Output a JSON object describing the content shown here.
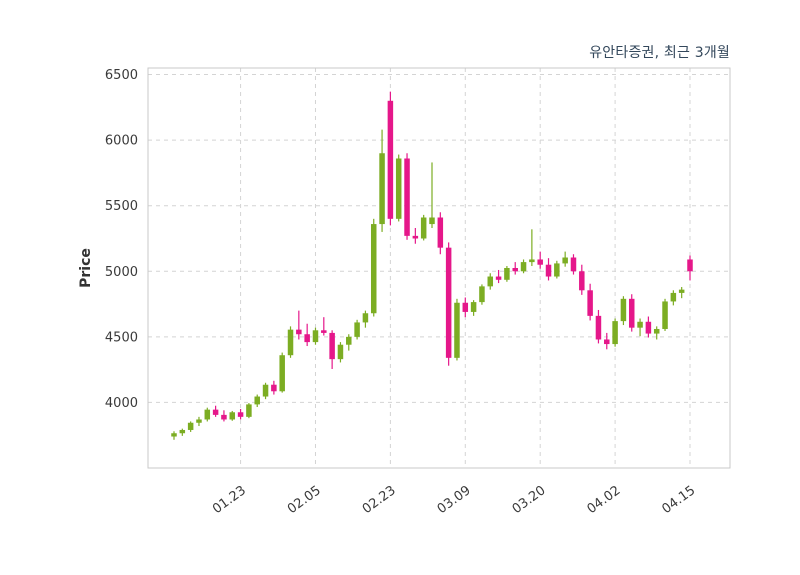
{
  "colors": {
    "background": "#ffffff",
    "grid": "#d4d4d4",
    "border": "#c9c9c9",
    "tick_text": "#3a3a3a",
    "title_text": "#33475b"
  },
  "chart_data": {
    "type": "candlestick",
    "title": "유안타증권, 최근 3개월",
    "ylabel": "Price",
    "xlabel": "",
    "ylim": [
      3500,
      6550
    ],
    "yticks": [
      4000,
      4500,
      5000,
      5500,
      6000,
      6500
    ],
    "xtick_labels": [
      "01.23",
      "02.05",
      "02.23",
      "03.09",
      "03.20",
      "04.02",
      "04.15"
    ],
    "xtick_indices": [
      8,
      17,
      26,
      35,
      44,
      53,
      62
    ],
    "grid": true,
    "legend": "none",
    "up_color": "#7CAD23",
    "down_color": "#E5178A",
    "series_format": [
      "open",
      "high",
      "low",
      "close"
    ],
    "candles": [
      [
        3740,
        3780,
        3715,
        3765
      ],
      [
        3765,
        3800,
        3745,
        3790
      ],
      [
        3790,
        3855,
        3775,
        3845
      ],
      [
        3845,
        3890,
        3820,
        3870
      ],
      [
        3870,
        3960,
        3855,
        3945
      ],
      [
        3945,
        3975,
        3890,
        3905
      ],
      [
        3905,
        3940,
        3855,
        3870
      ],
      [
        3870,
        3935,
        3860,
        3925
      ],
      [
        3925,
        3950,
        3870,
        3890
      ],
      [
        3890,
        3995,
        3880,
        3985
      ],
      [
        3985,
        4060,
        3965,
        4045
      ],
      [
        4045,
        4150,
        4025,
        4135
      ],
      [
        4135,
        4165,
        4060,
        4085
      ],
      [
        4085,
        4380,
        4075,
        4360
      ],
      [
        4360,
        4580,
        4340,
        4555
      ],
      [
        4555,
        4700,
        4480,
        4520
      ],
      [
        4520,
        4600,
        4430,
        4460
      ],
      [
        4460,
        4570,
        4440,
        4550
      ],
      [
        4550,
        4650,
        4510,
        4530
      ],
      [
        4530,
        4550,
        4255,
        4330
      ],
      [
        4330,
        4460,
        4305,
        4440
      ],
      [
        4440,
        4520,
        4395,
        4500
      ],
      [
        4500,
        4630,
        4480,
        4610
      ],
      [
        4610,
        4700,
        4570,
        4680
      ],
      [
        4680,
        5400,
        4655,
        5360
      ],
      [
        5360,
        6080,
        5300,
        5900
      ],
      [
        6300,
        6370,
        5350,
        5400
      ],
      [
        5400,
        5890,
        5380,
        5860
      ],
      [
        5860,
        5900,
        5240,
        5270
      ],
      [
        5270,
        5330,
        5210,
        5250
      ],
      [
        5250,
        5430,
        5235,
        5410
      ],
      [
        5360,
        5830,
        5330,
        5410
      ],
      [
        5410,
        5450,
        5130,
        5180
      ],
      [
        5180,
        5220,
        4280,
        4340
      ],
      [
        4340,
        4790,
        4320,
        4760
      ],
      [
        4760,
        4800,
        4650,
        4690
      ],
      [
        4690,
        4780,
        4660,
        4765
      ],
      [
        4765,
        4900,
        4745,
        4885
      ],
      [
        4885,
        4985,
        4860,
        4960
      ],
      [
        4960,
        5010,
        4910,
        4935
      ],
      [
        4935,
        5040,
        4920,
        5025
      ],
      [
        5025,
        5070,
        4975,
        5000
      ],
      [
        5000,
        5090,
        4985,
        5070
      ],
      [
        5070,
        5320,
        5040,
        5090
      ],
      [
        5090,
        5150,
        5020,
        5050
      ],
      [
        5050,
        5100,
        4930,
        4960
      ],
      [
        4960,
        5080,
        4945,
        5060
      ],
      [
        5060,
        5150,
        5035,
        5105
      ],
      [
        5105,
        5130,
        4975,
        5000
      ],
      [
        5000,
        5050,
        4820,
        4855
      ],
      [
        4855,
        4905,
        4625,
        4660
      ],
      [
        4660,
        4705,
        4450,
        4480
      ],
      [
        4480,
        4530,
        4405,
        4445
      ],
      [
        4445,
        4640,
        4425,
        4620
      ],
      [
        4620,
        4810,
        4590,
        4790
      ],
      [
        4790,
        4825,
        4540,
        4570
      ],
      [
        4570,
        4640,
        4505,
        4615
      ],
      [
        4615,
        4655,
        4495,
        4525
      ],
      [
        4525,
        4580,
        4480,
        4560
      ],
      [
        4560,
        4790,
        4545,
        4770
      ],
      [
        4770,
        4855,
        4740,
        4835
      ],
      [
        4835,
        4880,
        4795,
        4860
      ],
      [
        5090,
        5120,
        4930,
        5000
      ]
    ]
  }
}
